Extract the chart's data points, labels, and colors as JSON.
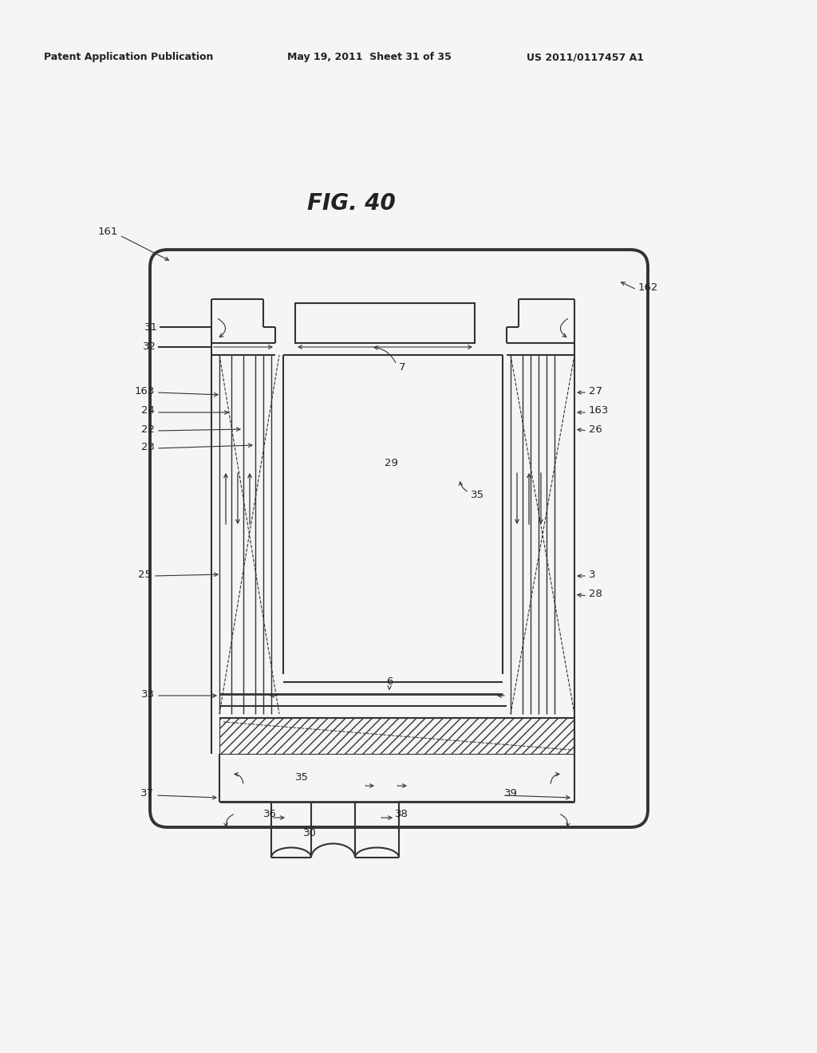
{
  "header_left": "Patent Application Publication",
  "header_mid": "May 19, 2011  Sheet 31 of 35",
  "header_right": "US 2011/0117457 A1",
  "fig_title": "FIG. 40",
  "bg_color": "#f5f5f5",
  "line_color": "#333333",
  "label_color": "#222222",
  "header_fontsize": 9,
  "title_fontsize": 20,
  "label_fontsize": 9.5
}
